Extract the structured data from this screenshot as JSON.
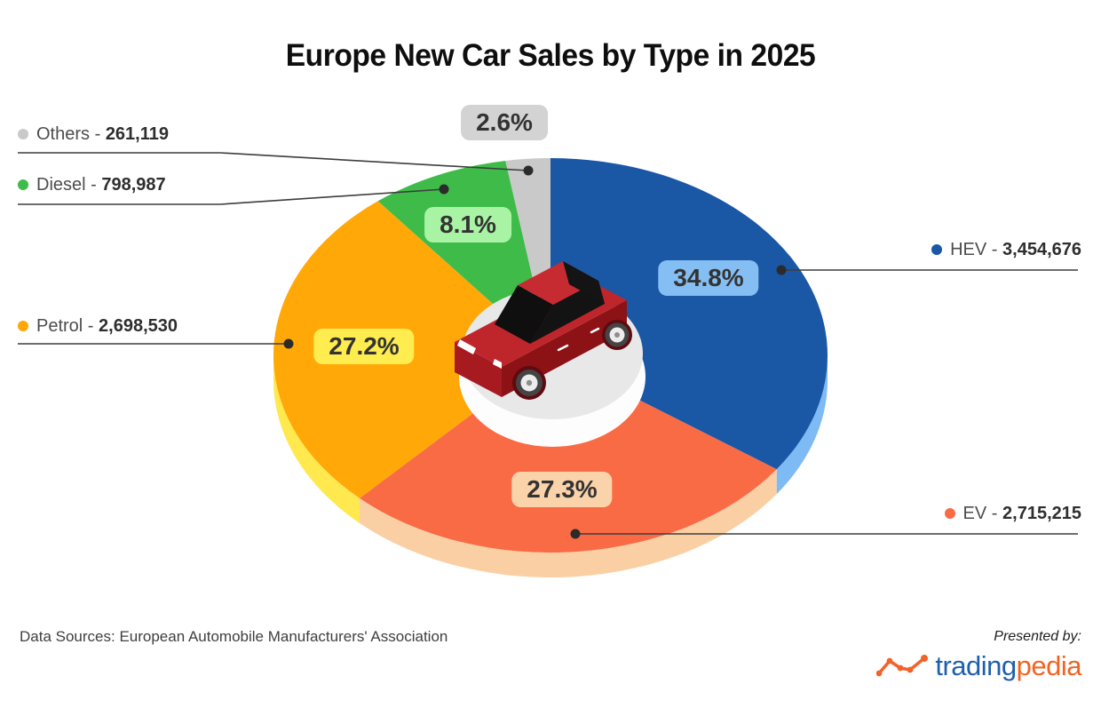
{
  "title": "Europe New Car Sales by Type in 2025",
  "chart_data": {
    "type": "pie",
    "title": "Europe New Car Sales by Type in 2025",
    "start_angle_deg": 0,
    "direction": "clockwise",
    "style": "3d-isometric-pie",
    "center_graphic": "red-isometric-car",
    "slices": [
      {
        "label": "HEV",
        "value": 3454676,
        "value_display": "3,454,676",
        "percent": 34.8,
        "percent_display": "34.8%",
        "color": "#1A57A5",
        "rim_color": "#7EBBF4",
        "badge_bg": "#85BEF2",
        "legend_side": "right"
      },
      {
        "label": "EV",
        "value": 2715215,
        "value_display": "2,715,215",
        "percent": 27.3,
        "percent_display": "27.3%",
        "color": "#F96B45",
        "rim_color": "#FACFA3",
        "badge_bg": "#FAD3AA",
        "legend_side": "right"
      },
      {
        "label": "Petrol",
        "value": 2698530,
        "value_display": "2,698,530",
        "percent": 27.2,
        "percent_display": "27.2%",
        "color": "#FFA807",
        "rim_color": "#FFE94F",
        "badge_bg": "#FFEC4F",
        "legend_side": "left"
      },
      {
        "label": "Diesel",
        "value": 798987,
        "value_display": "798,987",
        "percent": 8.1,
        "percent_display": "8.1%",
        "color": "#3EBB49",
        "rim_color": "#9FE39C",
        "badge_bg": "#A9F3A4",
        "legend_side": "left"
      },
      {
        "label": "Others",
        "value": 261119,
        "value_display": "261,119",
        "percent": 2.6,
        "percent_display": "2.6%",
        "color": "#C9C9C9",
        "rim_color": "#E2E2E2",
        "badge_bg": "#D3D3D3",
        "legend_side": "left"
      }
    ]
  },
  "footer": {
    "data_sources": "Data Sources: European Automobile Manufacturers' Association",
    "presented_by": "Presented by:",
    "logo_text_primary": "trading",
    "logo_text_secondary": "pedia",
    "logo_primary_color": "#1e5fad",
    "logo_secondary_color": "#f26322"
  }
}
